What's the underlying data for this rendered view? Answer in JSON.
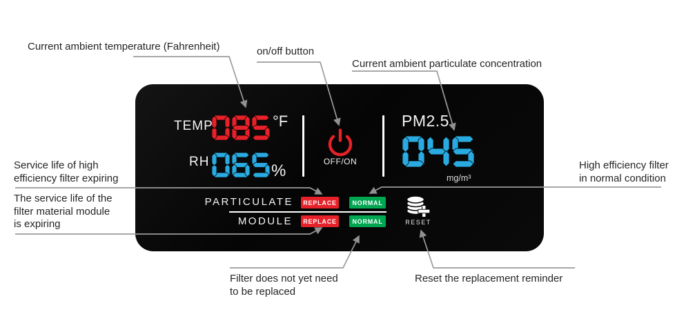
{
  "colors": {
    "red": "#e62129",
    "blue": "#29abe2",
    "green": "#00a650",
    "white": "#ffffff",
    "panel": "#0a0a0a",
    "line": "#9b9b9b",
    "ink": "#262425"
  },
  "panel": {
    "temp": {
      "label": "TEMP",
      "value": "085",
      "unit": "°F"
    },
    "rh": {
      "label": "RH",
      "value": "065",
      "unit": "%"
    },
    "power": {
      "label": "OFF/ON"
    },
    "pm": {
      "label": "PM2.5",
      "value": "045",
      "unit": "mg/m³"
    },
    "status": {
      "rows": [
        {
          "label": "PARTICULATE",
          "replace": "REPLACE",
          "normal": "NORMAL"
        },
        {
          "label": "MODULE",
          "replace": "REPLACE",
          "normal": "NORMAL"
        }
      ],
      "reset_label": "RESET"
    }
  },
  "annotations": {
    "temp": "Current ambient temperature (Fahrenheit)",
    "onoff": "on/off button",
    "pm": "Current ambient particulate concentration",
    "hepa_expiring": [
      "Service life of high",
      "efficiency filter expiring"
    ],
    "module_expiring": [
      "The service life of the",
      "filter material module",
      "is expiring"
    ],
    "hepa_normal": [
      "High efficiency filter",
      "in normal condition"
    ],
    "filter_ok": [
      "Filter does not yet need",
      "to be replaced"
    ],
    "reset": "Reset the replacement reminder"
  }
}
